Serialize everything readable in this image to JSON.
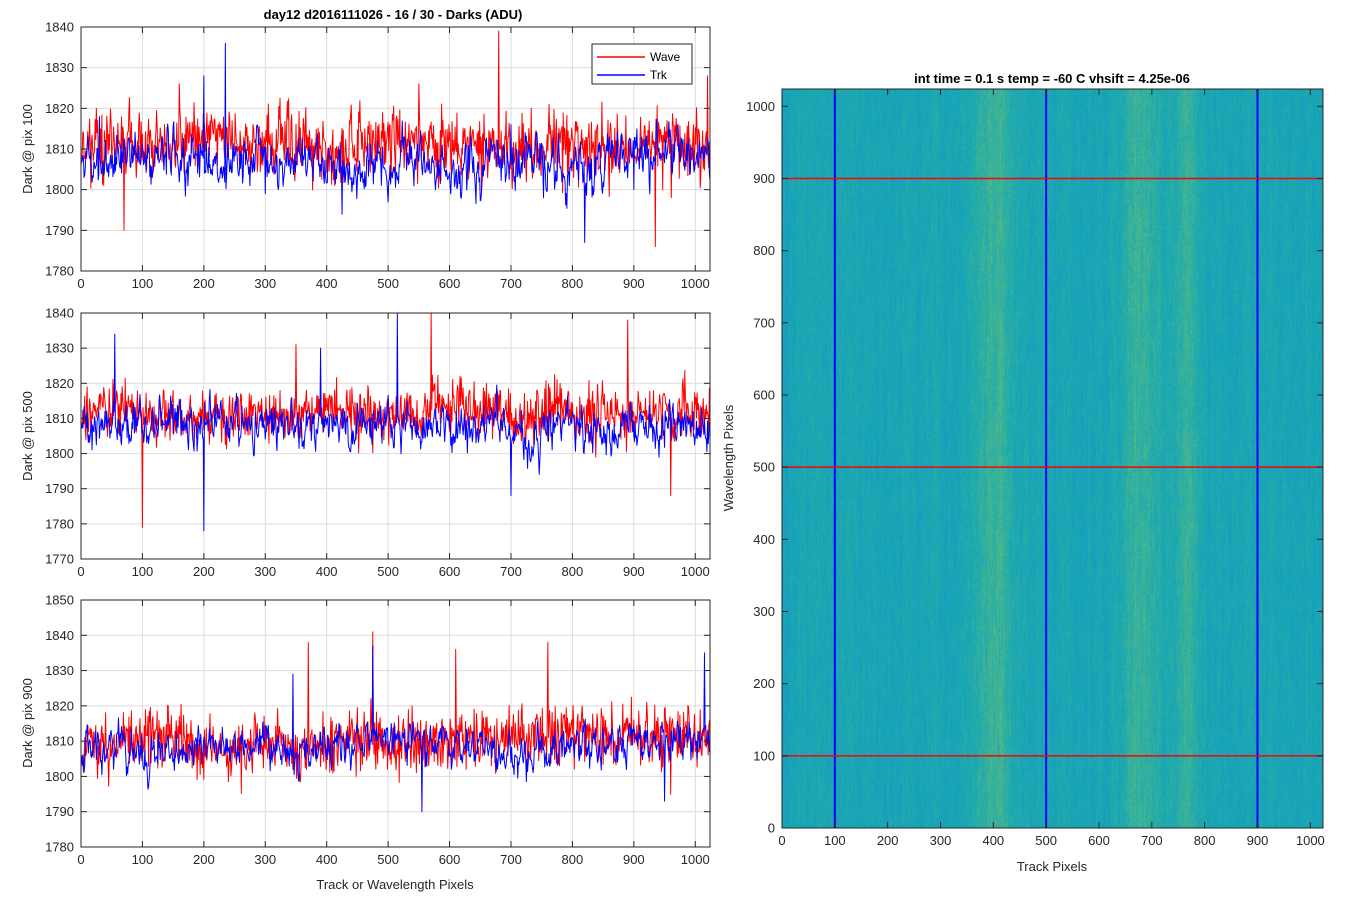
{
  "figure": {
    "title": "day12 d2016111026 - 16 / 30 - Darks (ADU)"
  },
  "chart_data": [
    {
      "type": "line",
      "title": "day12 d2016111026 - 16 / 30 - Darks (ADU)",
      "xlabel": "",
      "ylabel": "Dark @ pix 100",
      "xlim": [
        0,
        1024
      ],
      "ylim": [
        1780,
        1840
      ],
      "xticks": [
        0,
        100,
        200,
        300,
        400,
        500,
        600,
        700,
        800,
        900,
        1000
      ],
      "yticks": [
        1780,
        1790,
        1800,
        1810,
        1820,
        1830,
        1840
      ],
      "grid": true,
      "legend": {
        "placement": "top-right",
        "entries": [
          "Wave",
          "Trk"
        ]
      },
      "series": [
        {
          "name": "Wave",
          "color": "#ff0000",
          "mean": 1811,
          "noise": 6.5,
          "smooth": 0.05,
          "seed": 11,
          "anchors": [
            [
              25,
              1820
            ],
            [
              70,
              1790
            ],
            [
              160,
              1826
            ],
            [
              550,
              1826
            ],
            [
              680,
              1839
            ],
            [
              935,
              1786
            ],
            [
              1020,
              1828
            ]
          ]
        },
        {
          "name": "Trk",
          "color": "#0000ff",
          "mean": 1808,
          "noise": 5.5,
          "smooth": 0.55,
          "seed": 23,
          "anchors": [
            [
              30,
              1818
            ],
            [
              200,
              1828
            ],
            [
              235,
              1836
            ],
            [
              300,
              1799
            ],
            [
              425,
              1794
            ],
            [
              500,
              1797
            ],
            [
              700,
              1816
            ],
            [
              820,
              1787
            ],
            [
              900,
              1800
            ]
          ]
        }
      ]
    },
    {
      "type": "line",
      "xlabel": "",
      "ylabel": "Dark @ pix 500",
      "xlim": [
        0,
        1024
      ],
      "ylim": [
        1770,
        1840
      ],
      "xticks": [
        0,
        100,
        200,
        300,
        400,
        500,
        600,
        700,
        800,
        900,
        1000
      ],
      "yticks": [
        1770,
        1780,
        1790,
        1800,
        1810,
        1820,
        1830,
        1840
      ],
      "grid": true,
      "series": [
        {
          "name": "Wave",
          "color": "#ff0000",
          "mean": 1812,
          "noise": 6.5,
          "smooth": 0.05,
          "seed": 37,
          "anchors": [
            [
              100,
              1779
            ],
            [
              350,
              1831
            ],
            [
              570,
              1840
            ],
            [
              890,
              1838
            ],
            [
              960,
              1788
            ]
          ]
        },
        {
          "name": "Trk",
          "color": "#0000ff",
          "mean": 1808,
          "noise": 5.5,
          "smooth": 0.55,
          "seed": 41,
          "anchors": [
            [
              55,
              1834
            ],
            [
              200,
              1778
            ],
            [
              390,
              1830
            ],
            [
              515,
              1840
            ],
            [
              700,
              1788
            ]
          ]
        }
      ]
    },
    {
      "type": "line",
      "xlabel": "Track or Wavelength Pixels",
      "ylabel": "Dark @ pix 900",
      "xlim": [
        0,
        1024
      ],
      "ylim": [
        1780,
        1850
      ],
      "xticks": [
        0,
        100,
        200,
        300,
        400,
        500,
        600,
        700,
        800,
        900,
        1000
      ],
      "yticks": [
        1780,
        1790,
        1800,
        1810,
        1820,
        1830,
        1840,
        1850
      ],
      "grid": true,
      "series": [
        {
          "name": "Wave",
          "color": "#ff0000",
          "mean": 1810,
          "noise": 7,
          "smooth": 0.05,
          "seed": 53,
          "anchors": [
            [
              370,
              1838
            ],
            [
              475,
              1841
            ],
            [
              610,
              1836
            ],
            [
              760,
              1838
            ],
            [
              960,
              1795
            ]
          ]
        },
        {
          "name": "Trk",
          "color": "#0000ff",
          "mean": 1809,
          "noise": 5,
          "smooth": 0.55,
          "seed": 67,
          "anchors": [
            [
              345,
              1829
            ],
            [
              475,
              1837
            ],
            [
              555,
              1790
            ],
            [
              950,
              1793
            ],
            [
              1015,
              1835
            ]
          ]
        }
      ]
    },
    {
      "type": "heatmap",
      "title": "int time = 0.1 s   temp = -60 C   vhsift = 4.25e-06",
      "xlabel": "Track Pixels",
      "ylabel": "Wavelength Pixels",
      "xlim": [
        0,
        1024
      ],
      "ylim": [
        0,
        1024
      ],
      "xticks": [
        0,
        100,
        200,
        300,
        400,
        500,
        600,
        700,
        800,
        900,
        1000
      ],
      "yticks": [
        0,
        100,
        200,
        300,
        400,
        500,
        600,
        700,
        800,
        900,
        1000
      ],
      "colormap": "parula",
      "base_color": "#1b9ab5",
      "bright_bands": [
        [
          360,
          440
        ],
        [
          640,
          720
        ],
        [
          740,
          790
        ]
      ],
      "vertical_lines": {
        "color": "#0000ff",
        "values": [
          100,
          500,
          900
        ]
      },
      "horizontal_lines": {
        "color": "#ff0000",
        "values": [
          100,
          500,
          900
        ]
      }
    }
  ]
}
